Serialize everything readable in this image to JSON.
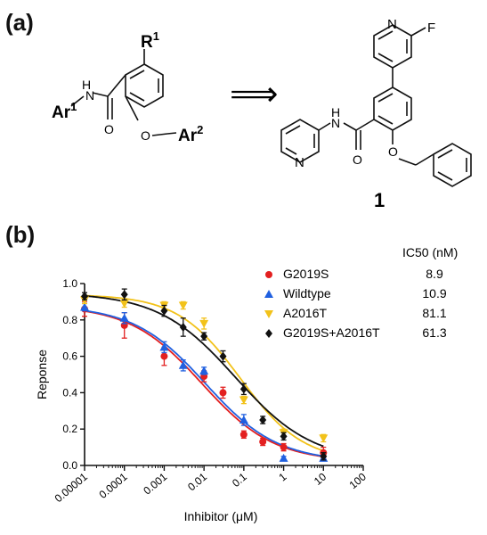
{
  "panels": {
    "a": "(a)",
    "b": "(b)"
  },
  "scheme": {
    "r1_base": "R",
    "r1_sup": "1",
    "ar1_base": "Ar",
    "ar1_sup": "1",
    "nh": "H",
    "n_amide": "N",
    "o_carbonyl": "O",
    "o_ether": "O",
    "ar2_base": "Ar",
    "ar2_sup": "2",
    "arrow": "⟹",
    "pyridine_n": "N",
    "fluorine": "F",
    "pyridinyl_n": "N",
    "compound_number": "1"
  },
  "chart_data": {
    "type": "scatter",
    "title": "",
    "xlabel": "Inhibitor (μM)",
    "ylabel": "Reponse",
    "xscale": "log",
    "xlim": [
      1e-05,
      100
    ],
    "ylim": [
      0.0,
      1.0
    ],
    "xticks": [
      "0.00001",
      "0.0001",
      "0.001",
      "0.01",
      "0.1",
      "1",
      "10",
      "100"
    ],
    "yticks": [
      "0.0",
      "0.2",
      "0.4",
      "0.6",
      "0.8",
      "1.0"
    ],
    "legend_header": "IC50 (nM)",
    "legend_position": "top-right",
    "series": [
      {
        "name": "G2019S",
        "ic50": "8.9",
        "color": "#e32020",
        "marker": "circle",
        "x": [
          1e-05,
          0.0001,
          0.001,
          0.01,
          0.03,
          0.1,
          0.3,
          1,
          10
        ],
        "y": [
          0.86,
          0.77,
          0.6,
          0.49,
          0.4,
          0.17,
          0.13,
          0.1,
          0.07
        ],
        "err": [
          0.04,
          0.07,
          0.05,
          0.03,
          0.03,
          0.02,
          0.02,
          0.02,
          0.03
        ],
        "fit_top": 0.88,
        "fit_bottom": 0.02,
        "fit_ic50": 0.0089,
        "fit_hill": 0.48
      },
      {
        "name": "Wildtype",
        "ic50": "10.9",
        "color": "#2060e0",
        "marker": "triangle-up",
        "x": [
          1e-05,
          0.0001,
          0.001,
          0.003,
          0.01,
          0.1,
          1,
          10
        ],
        "y": [
          0.87,
          0.81,
          0.65,
          0.55,
          0.52,
          0.25,
          0.04,
          0.04
        ],
        "err": [
          0.02,
          0.03,
          0.03,
          0.03,
          0.02,
          0.03,
          0.01,
          0.01
        ],
        "fit_top": 0.88,
        "fit_bottom": 0.02,
        "fit_ic50": 0.0109,
        "fit_hill": 0.48
      },
      {
        "name": "A2016T",
        "ic50": "81.1",
        "color": "#f2c21a",
        "marker": "triangle-down",
        "x": [
          1e-05,
          0.0001,
          0.001,
          0.003,
          0.01,
          0.1,
          1,
          10
        ],
        "y": [
          0.91,
          0.89,
          0.88,
          0.88,
          0.78,
          0.36,
          0.18,
          0.15
        ],
        "err": [
          0.02,
          0.02,
          0.02,
          0.02,
          0.03,
          0.02,
          0.02,
          0.02
        ],
        "fit_top": 0.94,
        "fit_bottom": 0.02,
        "fit_ic50": 0.0811,
        "fit_hill": 0.55
      },
      {
        "name": "G2019S+A2016T",
        "ic50": "61.3",
        "color": "#111111",
        "marker": "diamond",
        "x": [
          1e-05,
          0.0001,
          0.001,
          0.003,
          0.01,
          0.03,
          0.1,
          0.3,
          1,
          10
        ],
        "y": [
          0.93,
          0.94,
          0.85,
          0.76,
          0.71,
          0.6,
          0.42,
          0.25,
          0.16,
          0.05
        ],
        "err": [
          0.02,
          0.03,
          0.03,
          0.05,
          0.02,
          0.03,
          0.03,
          0.02,
          0.02,
          0.02
        ],
        "fit_top": 0.95,
        "fit_bottom": 0.02,
        "fit_ic50": 0.0613,
        "fit_hill": 0.45
      }
    ]
  }
}
